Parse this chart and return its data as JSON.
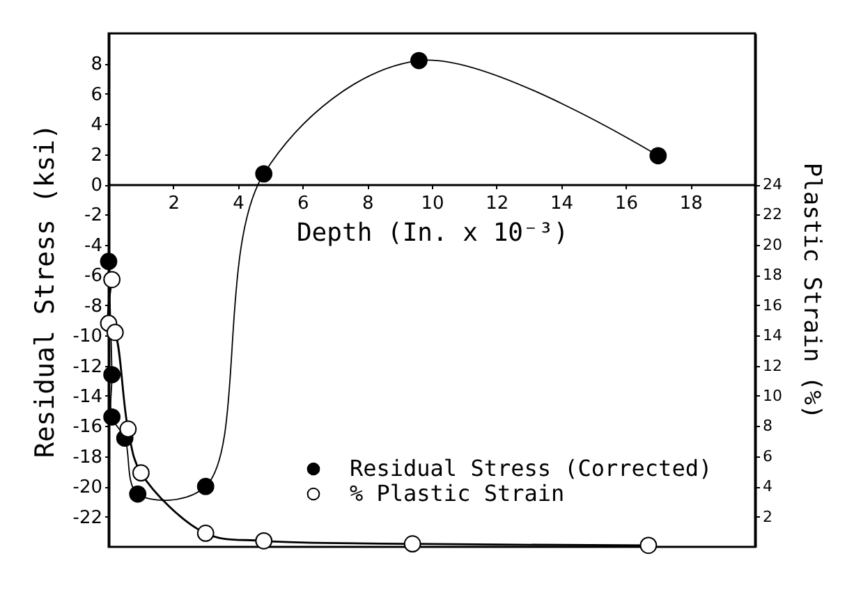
{
  "chart_data": {
    "type": "line",
    "xlabel": "Depth (In. x 10⁻³)",
    "ylabel": "Residual Stress (ksi)",
    "y2label": "Plastic Strain (%)",
    "xlim": [
      0,
      20
    ],
    "xticks": [
      2,
      4,
      6,
      8,
      10,
      12,
      14,
      16,
      18
    ],
    "ylim": [
      -24,
      10
    ],
    "yticks": [
      -22,
      -20,
      -18,
      -16,
      -14,
      -12,
      -10,
      -8,
      -6,
      -4,
      -2,
      0,
      2,
      4,
      6,
      8
    ],
    "y2lim": [
      0,
      34
    ],
    "y2ticks": [
      2,
      4,
      6,
      8,
      10,
      12,
      14,
      16,
      18,
      20,
      22,
      24
    ],
    "legend": "bottom right",
    "marker": "circle",
    "line_style": "solid",
    "series": [
      {
        "name": "Residual Stress (Corrected)",
        "color": "#000000",
        "x": [
          0,
          0.1,
          0.1,
          0.5,
          0.9,
          3.0,
          4.8,
          9.6,
          17.0
        ],
        "values": [
          -5.1,
          -12.6,
          -15.4,
          -16.8,
          -20.5,
          -20.0,
          0.7,
          8.2,
          1.9
        ]
      },
      {
        "name": "% Plastic Strain",
        "color": "#000000",
        "axis": "y2",
        "x": [
          0.1,
          0,
          0.2,
          0.6,
          1.0,
          3.0,
          4.8,
          9.4,
          16.7
        ],
        "values": [
          17.7,
          14.8,
          14.2,
          7.8,
          4.9,
          0.9,
          0.4,
          0.2,
          0.1
        ]
      }
    ]
  }
}
